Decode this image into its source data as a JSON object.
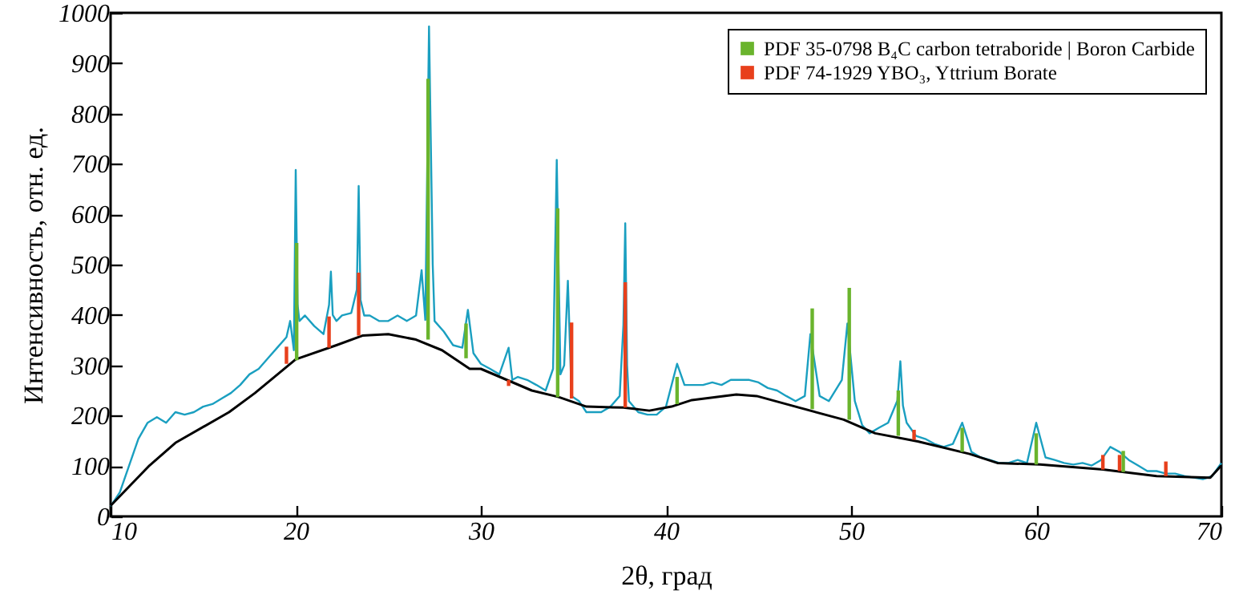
{
  "chart_data": {
    "type": "line",
    "xlabel": "2θ, град",
    "ylabel": "Интенсивность, отн. ед.",
    "xlim": [
      10,
      70
    ],
    "ylim": [
      0,
      1000
    ],
    "xticks": [
      10,
      20,
      30,
      40,
      50,
      60,
      70
    ],
    "yticks": [
      0,
      100,
      200,
      300,
      400,
      500,
      600,
      700,
      800,
      900,
      1000
    ],
    "grid": false,
    "legend": "top right",
    "series": [
      {
        "color": "#1a9fc0",
        "x": [
          10,
          10.5,
          11,
          11.5,
          12,
          12.5,
          13,
          13.5,
          14,
          14.5,
          15,
          15.5,
          16,
          16.5,
          17,
          17.5,
          18,
          18.5,
          19,
          19.5,
          19.7,
          19.9,
          20.0,
          20.1,
          20.2,
          20.5,
          21,
          21.5,
          21.8,
          21.9,
          22.0,
          22.2,
          22.5,
          23,
          23.3,
          23.4,
          23.5,
          23.7,
          24,
          24.5,
          25,
          25.5,
          26,
          26.5,
          26.8,
          27.0,
          27.2,
          27.4,
          27.5,
          28,
          28.5,
          29,
          29.3,
          29.6,
          30,
          30.5,
          31,
          31.5,
          31.7,
          32,
          32.5,
          33,
          33.5,
          33.9,
          34.1,
          34.3,
          34.5,
          34.7,
          34.9,
          35.3,
          35.7,
          36.5,
          37,
          37.5,
          37.7,
          37.8,
          37.9,
          38.0,
          38.5,
          39,
          39.5,
          40,
          40.6,
          41,
          41.5,
          42,
          42.5,
          43,
          43.5,
          44,
          44.5,
          45,
          45.5,
          46,
          46.5,
          47,
          47.5,
          47.8,
          48.3,
          48.8,
          49.5,
          49.8,
          50.2,
          50.6,
          51,
          51.5,
          52,
          52.5,
          52.66,
          52.8,
          53,
          53.5,
          54,
          54.5,
          55,
          55.5,
          56,
          56.5,
          57,
          57.5,
          58,
          58.5,
          59,
          59.5,
          60,
          60.5,
          61,
          61.5,
          62,
          62.5,
          63,
          63.5,
          64,
          64.5,
          65,
          65.5,
          66,
          66.5,
          67,
          67.5,
          68,
          68.5,
          69,
          69.5,
          70
        ],
        "values": [
          20,
          48,
          101,
          154,
          186,
          197,
          186,
          207,
          202,
          207,
          218,
          223,
          234,
          245,
          261,
          282,
          293,
          314,
          335,
          356,
          388,
          330,
          688,
          420,
          388,
          399,
          378,
          362,
          420,
          486,
          400,
          388,
          399,
          404,
          450,
          656,
          430,
          399,
          399,
          388,
          388,
          399,
          388,
          399,
          489,
          390,
          973,
          500,
          388,
          367,
          340,
          335,
          410,
          324,
          303,
          293,
          282,
          335,
          271,
          277,
          271,
          261,
          250,
          293,
          708,
          282,
          300,
          468,
          239,
          229,
          207,
          207,
          218,
          239,
          380,
          582,
          300,
          229,
          207,
          202,
          202,
          218,
          303,
          261,
          261,
          261,
          266,
          261,
          271,
          271,
          271,
          266,
          255,
          250,
          239,
          229,
          239,
          362,
          239,
          229,
          271,
          383,
          229,
          181,
          165,
          176,
          186,
          230,
          308,
          220,
          186,
          160,
          154,
          144,
          138,
          144,
          186,
          128,
          117,
          112,
          106,
          106,
          112,
          106,
          186,
          117,
          112,
          106,
          103,
          106,
          101,
          112,
          138,
          128,
          112,
          101,
          90,
          90,
          85,
          85,
          80,
          77,
          74,
          80,
          106
        ]
      },
      {
        "color": "#000000",
        "x": [
          10,
          12.1,
          13.5,
          16.4,
          17.8,
          20,
          22.2,
          23.6,
          25,
          26.5,
          27.9,
          29.4,
          30,
          32.75,
          34.2,
          35.7,
          37.7,
          39.1,
          40.3,
          41.4,
          43.8,
          44.9,
          47.2,
          49.6,
          51.3,
          53.6,
          56.4,
          57.9,
          60.2,
          63.6,
          66.5,
          69.4,
          70
        ],
        "values": [
          21,
          101,
          146,
          207,
          245,
          312,
          340,
          359,
          362,
          351,
          330,
          293,
          293,
          250,
          237,
          218,
          216,
          210,
          218,
          231,
          242,
          239,
          216,
          192,
          165,
          149,
          124,
          106,
          103,
          93,
          80,
          77,
          101
        ]
      },
      {
        "type": "bar",
        "name": "PDF 35-0798 B₄C carbon tetraboride | Boron Carbide",
        "color": "#6ab42d",
        "x": [
          20.05,
          27.15,
          29.2,
          34.15,
          40.6,
          47.9,
          49.9,
          52.55,
          56.0,
          60.0,
          64.7
        ],
        "base": [
          310,
          351,
          314,
          237,
          223,
          213,
          192,
          160,
          128,
          103,
          88
        ],
        "values": [
          233,
          518,
          69,
          375,
          54,
          200,
          262,
          90,
          48,
          62,
          42
        ]
      },
      {
        "type": "bar",
        "name": "PDF 74-1929 YBO₃, Yttrium Borate",
        "color": "#e8401c",
        "x": [
          19.5,
          21.8,
          23.4,
          31.5,
          34.9,
          37.8,
          53.4,
          63.6,
          64.5,
          67.0
        ],
        "base": [
          303,
          335,
          359,
          259,
          234,
          216,
          152,
          93,
          90,
          80
        ],
        "values": [
          34,
          62,
          125,
          12,
          151,
          249,
          20,
          29,
          32,
          29
        ]
      }
    ]
  }
}
